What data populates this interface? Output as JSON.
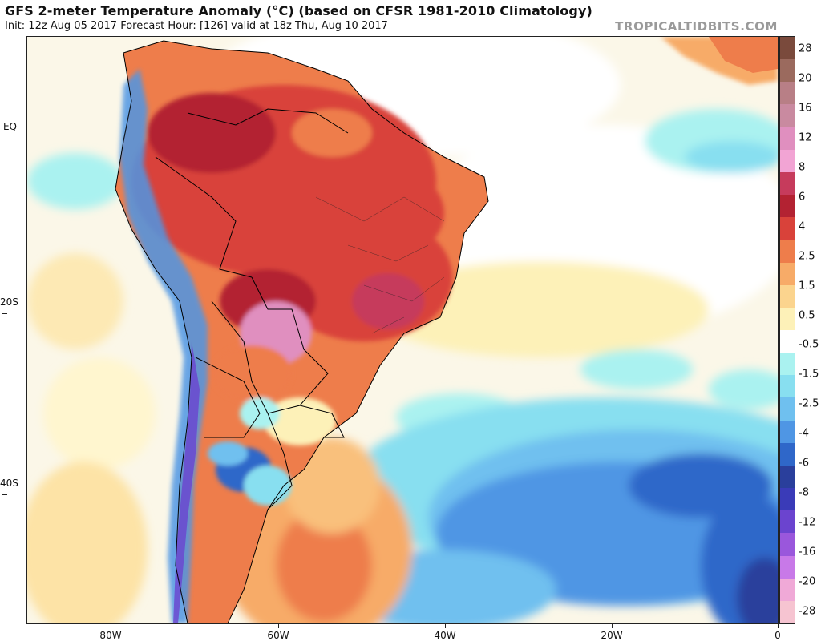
{
  "header": {
    "title": "GFS 2-meter Temperature Anomaly (°C) (based on CFSR 1981-2010 Climatology)",
    "subtitle": "Init: 12z Aug 05 2017   Forecast Hour: [126]   valid at 18z Thu, Aug 10 2017",
    "brand": "TROPICALTIDBITS.COM"
  },
  "map": {
    "latitude_labels": [
      "EQ",
      "20S",
      "40S"
    ],
    "longitude_labels": [
      "80W",
      "60W",
      "40W",
      "20W",
      "0"
    ]
  },
  "colorbar": {
    "labels": [
      "28",
      "20",
      "16",
      "12",
      "8",
      "6",
      "4",
      "2.5",
      "1.5",
      "0.5",
      "-0.5",
      "-1.5",
      "-2.5",
      "-4",
      "-6",
      "-8",
      "-12",
      "-16",
      "-20",
      "-28"
    ],
    "colors": [
      "#7a4a3c",
      "#9b6a5e",
      "#b87f86",
      "#c98aa0",
      "#e08fbf",
      "#f2a4d4",
      "#c63b5c",
      "#b32232",
      "#d9423a",
      "#ee7d4b",
      "#f7ab68",
      "#fbd48e",
      "#fdf1b8",
      "#ffffff",
      "#aaf2f0",
      "#88dff0",
      "#6fc0ef",
      "#4f96e4",
      "#2f67c9",
      "#2a3f9c",
      "#3a3bb8",
      "#6b44cf",
      "#9a57dc",
      "#c879e8",
      "#f0a9d7",
      "#f6c4d1"
    ]
  }
}
